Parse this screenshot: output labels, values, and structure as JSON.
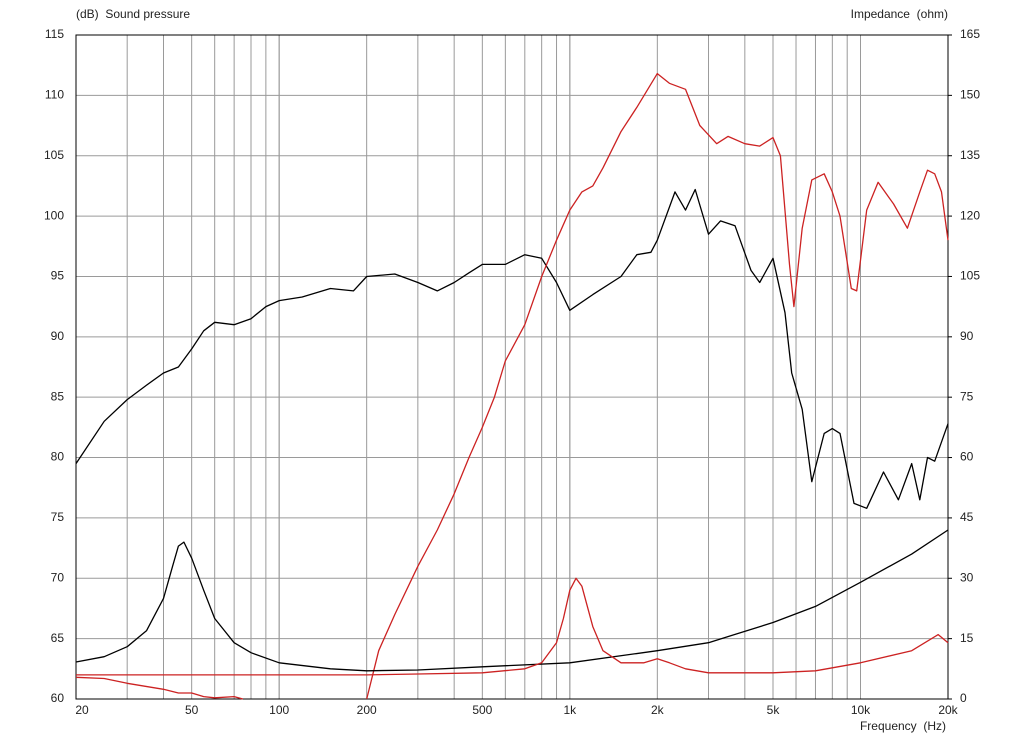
{
  "chart_data": {
    "type": "line",
    "y_label": "(dB)  Sound pressure",
    "y2_label": "Impedance  (ohm)",
    "x_label": "Frequency  (Hz)",
    "log_x": true,
    "grid": true,
    "xlim": [
      20,
      20000
    ],
    "xticks": [
      20,
      50,
      100,
      200,
      500,
      {
        "value": 1000,
        "label": "1k"
      },
      {
        "value": 2000,
        "label": "2k"
      },
      {
        "value": 5000,
        "label": "5k"
      },
      {
        "value": 10000,
        "label": "10k"
      },
      {
        "value": 20000,
        "label": "20k"
      }
    ],
    "xminor_ticks": [
      30,
      40,
      60,
      70,
      80,
      90,
      100,
      300,
      400,
      600,
      700,
      800,
      900,
      1000,
      3000,
      4000,
      6000,
      7000,
      8000,
      9000,
      10000
    ],
    "ylim": [
      60,
      115
    ],
    "yticks": [
      60,
      65,
      70,
      75,
      80,
      85,
      90,
      95,
      100,
      105,
      110,
      115
    ],
    "y2lim": [
      0,
      165
    ],
    "y2ticks": [
      0,
      15,
      30,
      45,
      60,
      75,
      90,
      105,
      120,
      135,
      150,
      165
    ],
    "series": [
      {
        "color": "#000000",
        "axis": "y",
        "x": [
          20,
          25,
          30,
          35,
          40,
          45,
          50,
          55,
          60,
          70,
          80,
          90,
          100,
          120,
          150,
          180,
          200,
          250,
          300,
          350,
          400,
          450,
          500,
          600,
          700,
          800,
          900,
          1000,
          1200,
          1500,
          1700,
          1900,
          2000,
          2300,
          2500,
          2700,
          3000,
          3300,
          3700,
          4200,
          4500,
          5000,
          5500,
          5800,
          6300,
          6800,
          7500,
          8000,
          8500,
          9500,
          10500,
          12000,
          13500,
          15000,
          16000,
          17000,
          18000,
          20000
        ],
        "values": [
          79.5,
          83,
          84.8,
          86,
          87,
          87.5,
          89,
          90.5,
          91.2,
          91,
          91.5,
          92.5,
          93,
          93.3,
          94,
          93.8,
          95,
          95.2,
          94.5,
          93.8,
          94.5,
          95.3,
          96,
          96,
          96.8,
          96.5,
          94.5,
          92.2,
          93.5,
          95,
          96.8,
          97,
          98,
          102,
          100.5,
          102.2,
          98.5,
          99.6,
          99.2,
          95.5,
          94.5,
          96.5,
          92,
          87,
          84,
          78,
          82,
          82.4,
          82,
          76.2,
          75.8,
          78.8,
          76.5,
          79.5,
          76.5,
          80,
          79.7,
          82.8
        ]
      },
      {
        "color": "#cc2222",
        "axis": "y",
        "x": [
          20,
          25,
          30,
          40,
          45,
          50,
          55,
          60,
          70,
          75,
          150,
          200,
          220,
          250,
          300,
          350,
          400,
          450,
          500,
          550,
          600,
          700,
          800,
          900,
          1000,
          1100,
          1200,
          1300,
          1500,
          1700,
          2000,
          2200,
          2500,
          2800,
          3200,
          3500,
          4000,
          4500,
          5000,
          5300,
          5700,
          5900,
          6300,
          6800,
          7500,
          8000,
          8500,
          9300,
          9700,
          10500,
          11500,
          13000,
          14500,
          16000,
          17000,
          18000,
          19000,
          20000
        ],
        "values": [
          61.8,
          61.7,
          61.3,
          60.8,
          60.5,
          60.5,
          60.2,
          60.1,
          60.2,
          60,
          null,
          60,
          64,
          67,
          71,
          74,
          77,
          80,
          82.5,
          85,
          88,
          91,
          95,
          98,
          100.5,
          102,
          102.5,
          104,
          107,
          109,
          111.8,
          111,
          110.5,
          107.5,
          106,
          106.6,
          106,
          105.8,
          106.5,
          105,
          96,
          92.5,
          99,
          103,
          103.5,
          102,
          100,
          94,
          93.8,
          100.5,
          102.8,
          101,
          99,
          102,
          103.8,
          103.5,
          102,
          98
        ]
      },
      {
        "color": "#000000",
        "axis": "y2",
        "x": [
          20,
          25,
          30,
          35,
          40,
          43,
          45,
          47,
          50,
          55,
          60,
          70,
          80,
          100,
          150,
          200,
          300,
          500,
          1000,
          2000,
          3000,
          5000,
          7000,
          10000,
          15000,
          20000
        ],
        "values": [
          9.2,
          10.5,
          13,
          17,
          25,
          33,
          38,
          39,
          35,
          27,
          20,
          14,
          11.5,
          9,
          7.5,
          7,
          7.2,
          8,
          9,
          12,
          14,
          19,
          23,
          29,
          36,
          42
        ]
      },
      {
        "color": "#cc2222",
        "axis": "y2",
        "x": [
          20,
          100,
          200,
          300,
          500,
          700,
          800,
          900,
          950,
          1000,
          1050,
          1100,
          1200,
          1300,
          1500,
          1800,
          2000,
          2200,
          2500,
          3000,
          4000,
          5000,
          7000,
          10000,
          15000,
          18500,
          20000
        ],
        "values": [
          6,
          6,
          6,
          6.2,
          6.5,
          7.5,
          9,
          14,
          20,
          27,
          30,
          28,
          18,
          12,
          9,
          9,
          10,
          9,
          7.5,
          6.5,
          6.5,
          6.5,
          7,
          9,
          12,
          16,
          14
        ]
      }
    ]
  }
}
